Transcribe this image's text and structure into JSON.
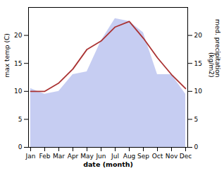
{
  "chart_data": {
    "type": "line",
    "categories": [
      "Jan",
      "Feb",
      "Mar",
      "Apr",
      "May",
      "Jun",
      "Jul",
      "Aug",
      "Sep",
      "Oct",
      "Nov",
      "Dec"
    ],
    "xlabel": "date (month)",
    "ylabel": "max temp (C)",
    "y2label": "med. precipitation\n(kg/m2)",
    "ylim": [
      0,
      25
    ],
    "yticks": [
      0,
      5,
      10,
      15,
      20
    ],
    "y2lim": [
      0,
      25
    ],
    "y2ticks": [
      0,
      5,
      10,
      15,
      20
    ],
    "series": [
      {
        "type": "area",
        "color": "#b3bcee",
        "axis": "y2",
        "values": [
          10.5,
          9.5,
          10.0,
          13.0,
          13.5,
          19.0,
          23.0,
          22.5,
          20.5,
          13.0,
          13.0,
          9.5
        ]
      },
      {
        "type": "line",
        "color": "#aa3333",
        "values": [
          10.0,
          10.0,
          11.5,
          14.0,
          17.5,
          19.0,
          21.5,
          22.5,
          19.5,
          16.0,
          13.0,
          10.5
        ]
      }
    ]
  }
}
